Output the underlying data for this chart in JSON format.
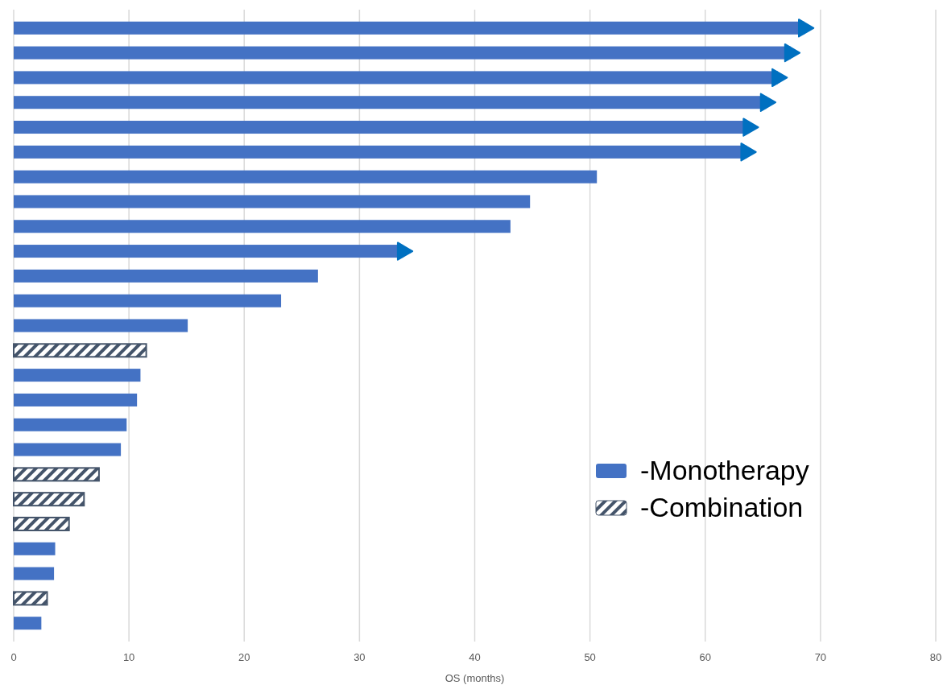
{
  "chart_data": {
    "type": "bar",
    "orientation": "horizontal",
    "xlabel": "OS (months)",
    "categories": [
      null,
      null,
      null,
      null,
      null,
      null,
      null,
      null,
      null,
      null,
      null,
      null,
      null,
      null,
      null,
      null,
      null,
      null,
      null,
      null,
      null,
      null,
      null,
      null,
      null
    ],
    "series": [
      {
        "name": "-Monotherapy",
        "color": "#4472c4",
        "values": [
          68.6,
          67.4,
          66.3,
          65.3,
          63.8,
          63.6,
          50.6,
          44.8,
          43.1,
          33.8,
          26.4,
          23.2,
          15.1,
          null,
          11.0,
          10.7,
          9.8,
          9.3,
          null,
          null,
          null,
          3.6,
          3.5,
          null,
          2.4
        ]
      },
      {
        "name": "-Combination",
        "color": "#44546a",
        "values": [
          null,
          null,
          null,
          null,
          null,
          null,
          null,
          null,
          null,
          null,
          null,
          null,
          null,
          11.5,
          null,
          null,
          null,
          null,
          7.4,
          6.1,
          4.8,
          null,
          null,
          2.9,
          null
        ]
      },
      {
        "type": "scatter",
        "marker": "triangle",
        "color": "#0070c0",
        "values": [
          68.6,
          67.4,
          66.3,
          65.3,
          63.8,
          63.6,
          null,
          null,
          null,
          33.8,
          null,
          null,
          null,
          null,
          null,
          null,
          null,
          null,
          null,
          null,
          null,
          null,
          null,
          null,
          null
        ]
      }
    ],
    "xlim": [
      0,
      80
    ],
    "xticks": [
      0,
      10,
      20,
      30,
      40,
      50,
      60,
      70,
      80
    ],
    "grid": "x",
    "legend": "bottom right"
  }
}
